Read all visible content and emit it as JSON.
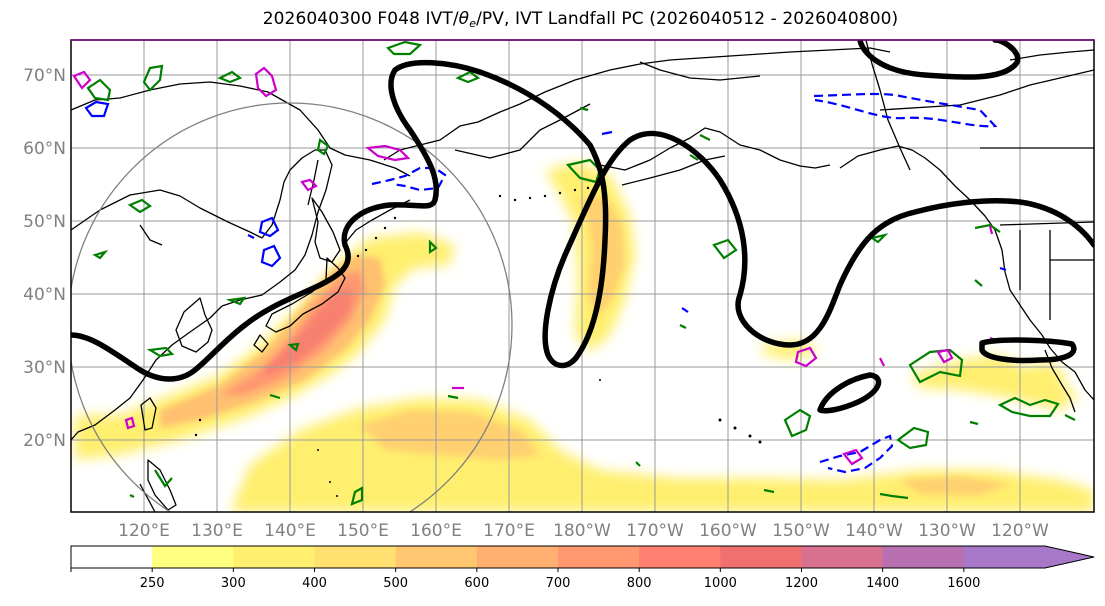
{
  "figure": {
    "title_prefix": "2026040300 F048 IVT/",
    "title_theta": "θ",
    "title_theta_sub": "e",
    "title_suffix": "/PV, IVT Landfall PC (2026040512 - 2026040800)"
  },
  "map": {
    "projection": "equirectangular",
    "lon_range_east": [
      110,
      250
    ],
    "lat_range": [
      10,
      75
    ],
    "grid": true,
    "lat_ticks": [
      "70°N",
      "60°N",
      "50°N",
      "40°N",
      "30°N",
      "20°N"
    ],
    "lon_ticks": [
      "120°E",
      "130°E",
      "140°E",
      "150°E",
      "160°E",
      "170°E",
      "180°W",
      "170°W",
      "160°W",
      "150°W",
      "140°W",
      "130°W",
      "120°W"
    ],
    "land_outline_color": "#000000",
    "radius_circle_color": "#808080"
  },
  "fields": {
    "ivt_fill": "IVT",
    "theta_e_contours": {
      "colors": {
        "positive": "#008000",
        "negative": "#0000ff",
        "magenta": "#cc00cc"
      }
    },
    "pv_contour": {
      "color": "#000000"
    }
  },
  "colorbar": {
    "levels": [
      "250",
      "300",
      "400",
      "500",
      "600",
      "700",
      "800",
      "1000",
      "1200",
      "1400",
      "1600"
    ],
    "colors": [
      "#ffffff",
      "#ffff80",
      "#fff070",
      "#ffe070",
      "#ffc870",
      "#ffb070",
      "#ff9870",
      "#ff8070",
      "#f07070",
      "#d87090",
      "#b870b0",
      "#a878c8"
    ],
    "extend": "max"
  }
}
